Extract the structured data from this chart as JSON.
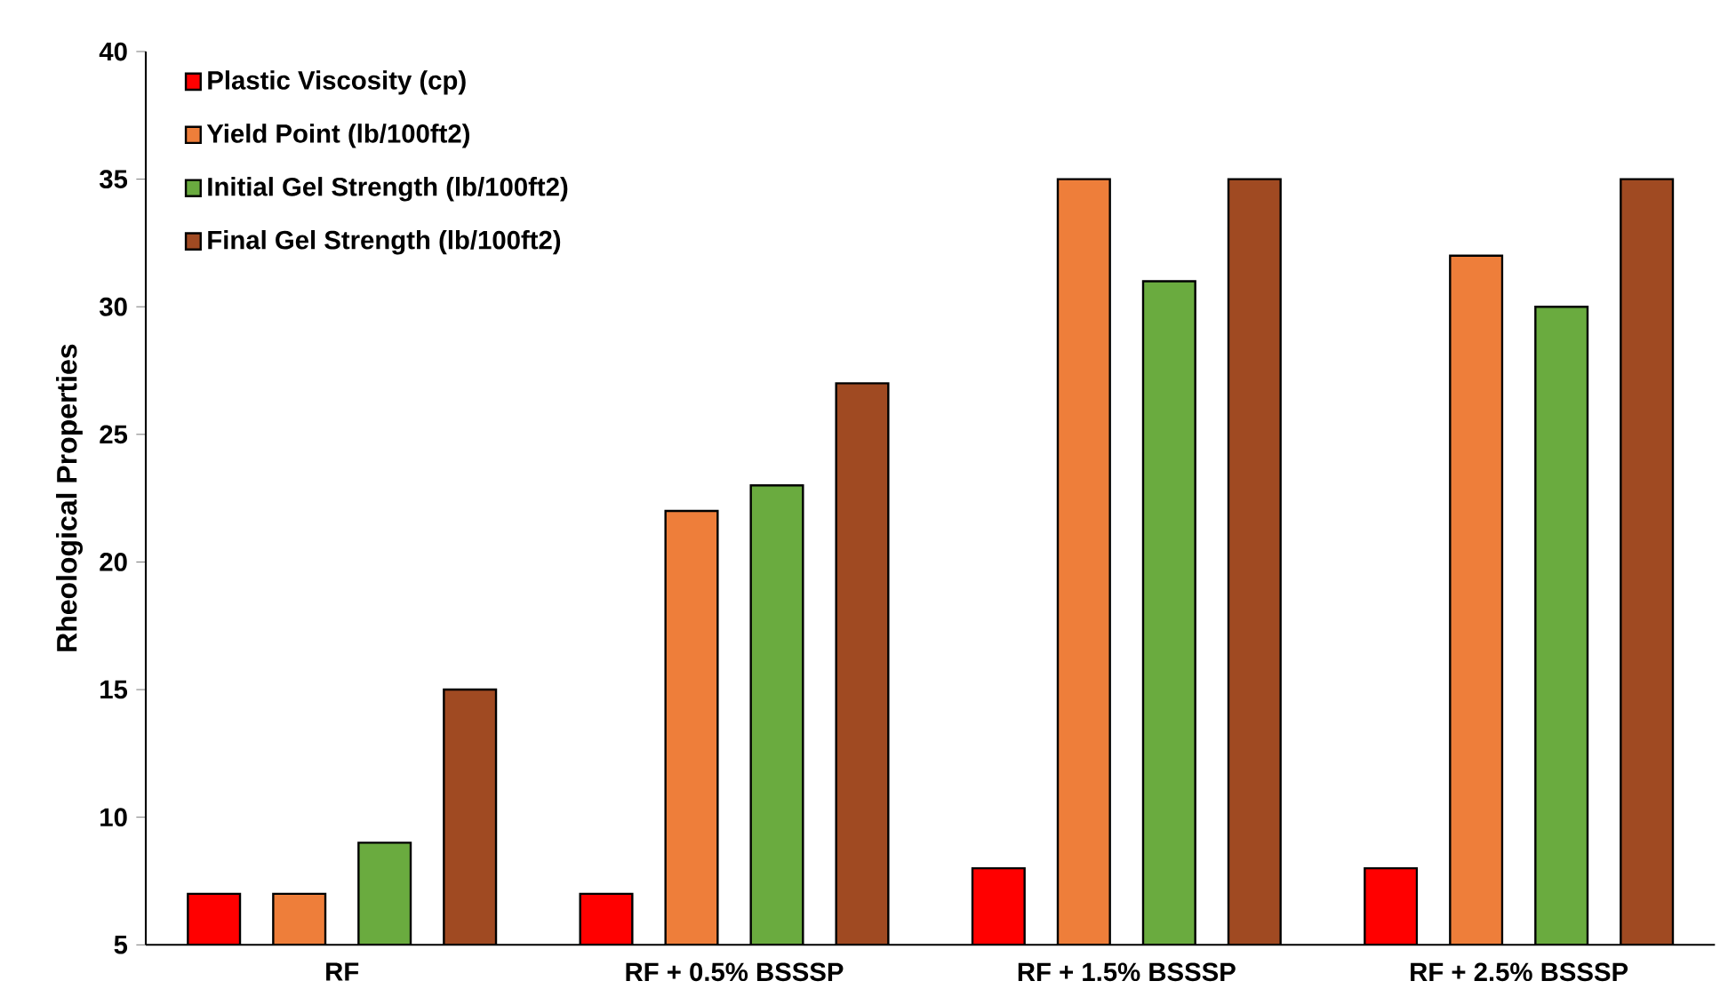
{
  "chart_data": {
    "type": "bar",
    "ylabel": "Rheological Properties",
    "categories": [
      "RF",
      "RF + 0.5% BSSSP",
      "RF + 1.5% BSSSP",
      "RF + 2.5% BSSSP"
    ],
    "series": [
      {
        "name": "Plastic Viscosity (cp)",
        "color": "#ff0000",
        "values": [
          7,
          7,
          8,
          8
        ]
      },
      {
        "name": "Yield Point (lb/100ft2)",
        "color": "#ee7e3a",
        "values": [
          7,
          22,
          35,
          32
        ]
      },
      {
        "name": "Initial Gel Strength (lb/100ft2)",
        "color": "#6aab3f",
        "values": [
          9,
          23,
          31,
          30
        ]
      },
      {
        "name": "Final Gel Strength (lb/100ft2)",
        "color": "#a04a22",
        "values": [
          15,
          27,
          35,
          35
        ]
      }
    ],
    "ylim": [
      5,
      40
    ],
    "yticks": [
      5,
      10,
      15,
      20,
      25,
      30,
      35,
      40
    ],
    "legend": "top left"
  }
}
